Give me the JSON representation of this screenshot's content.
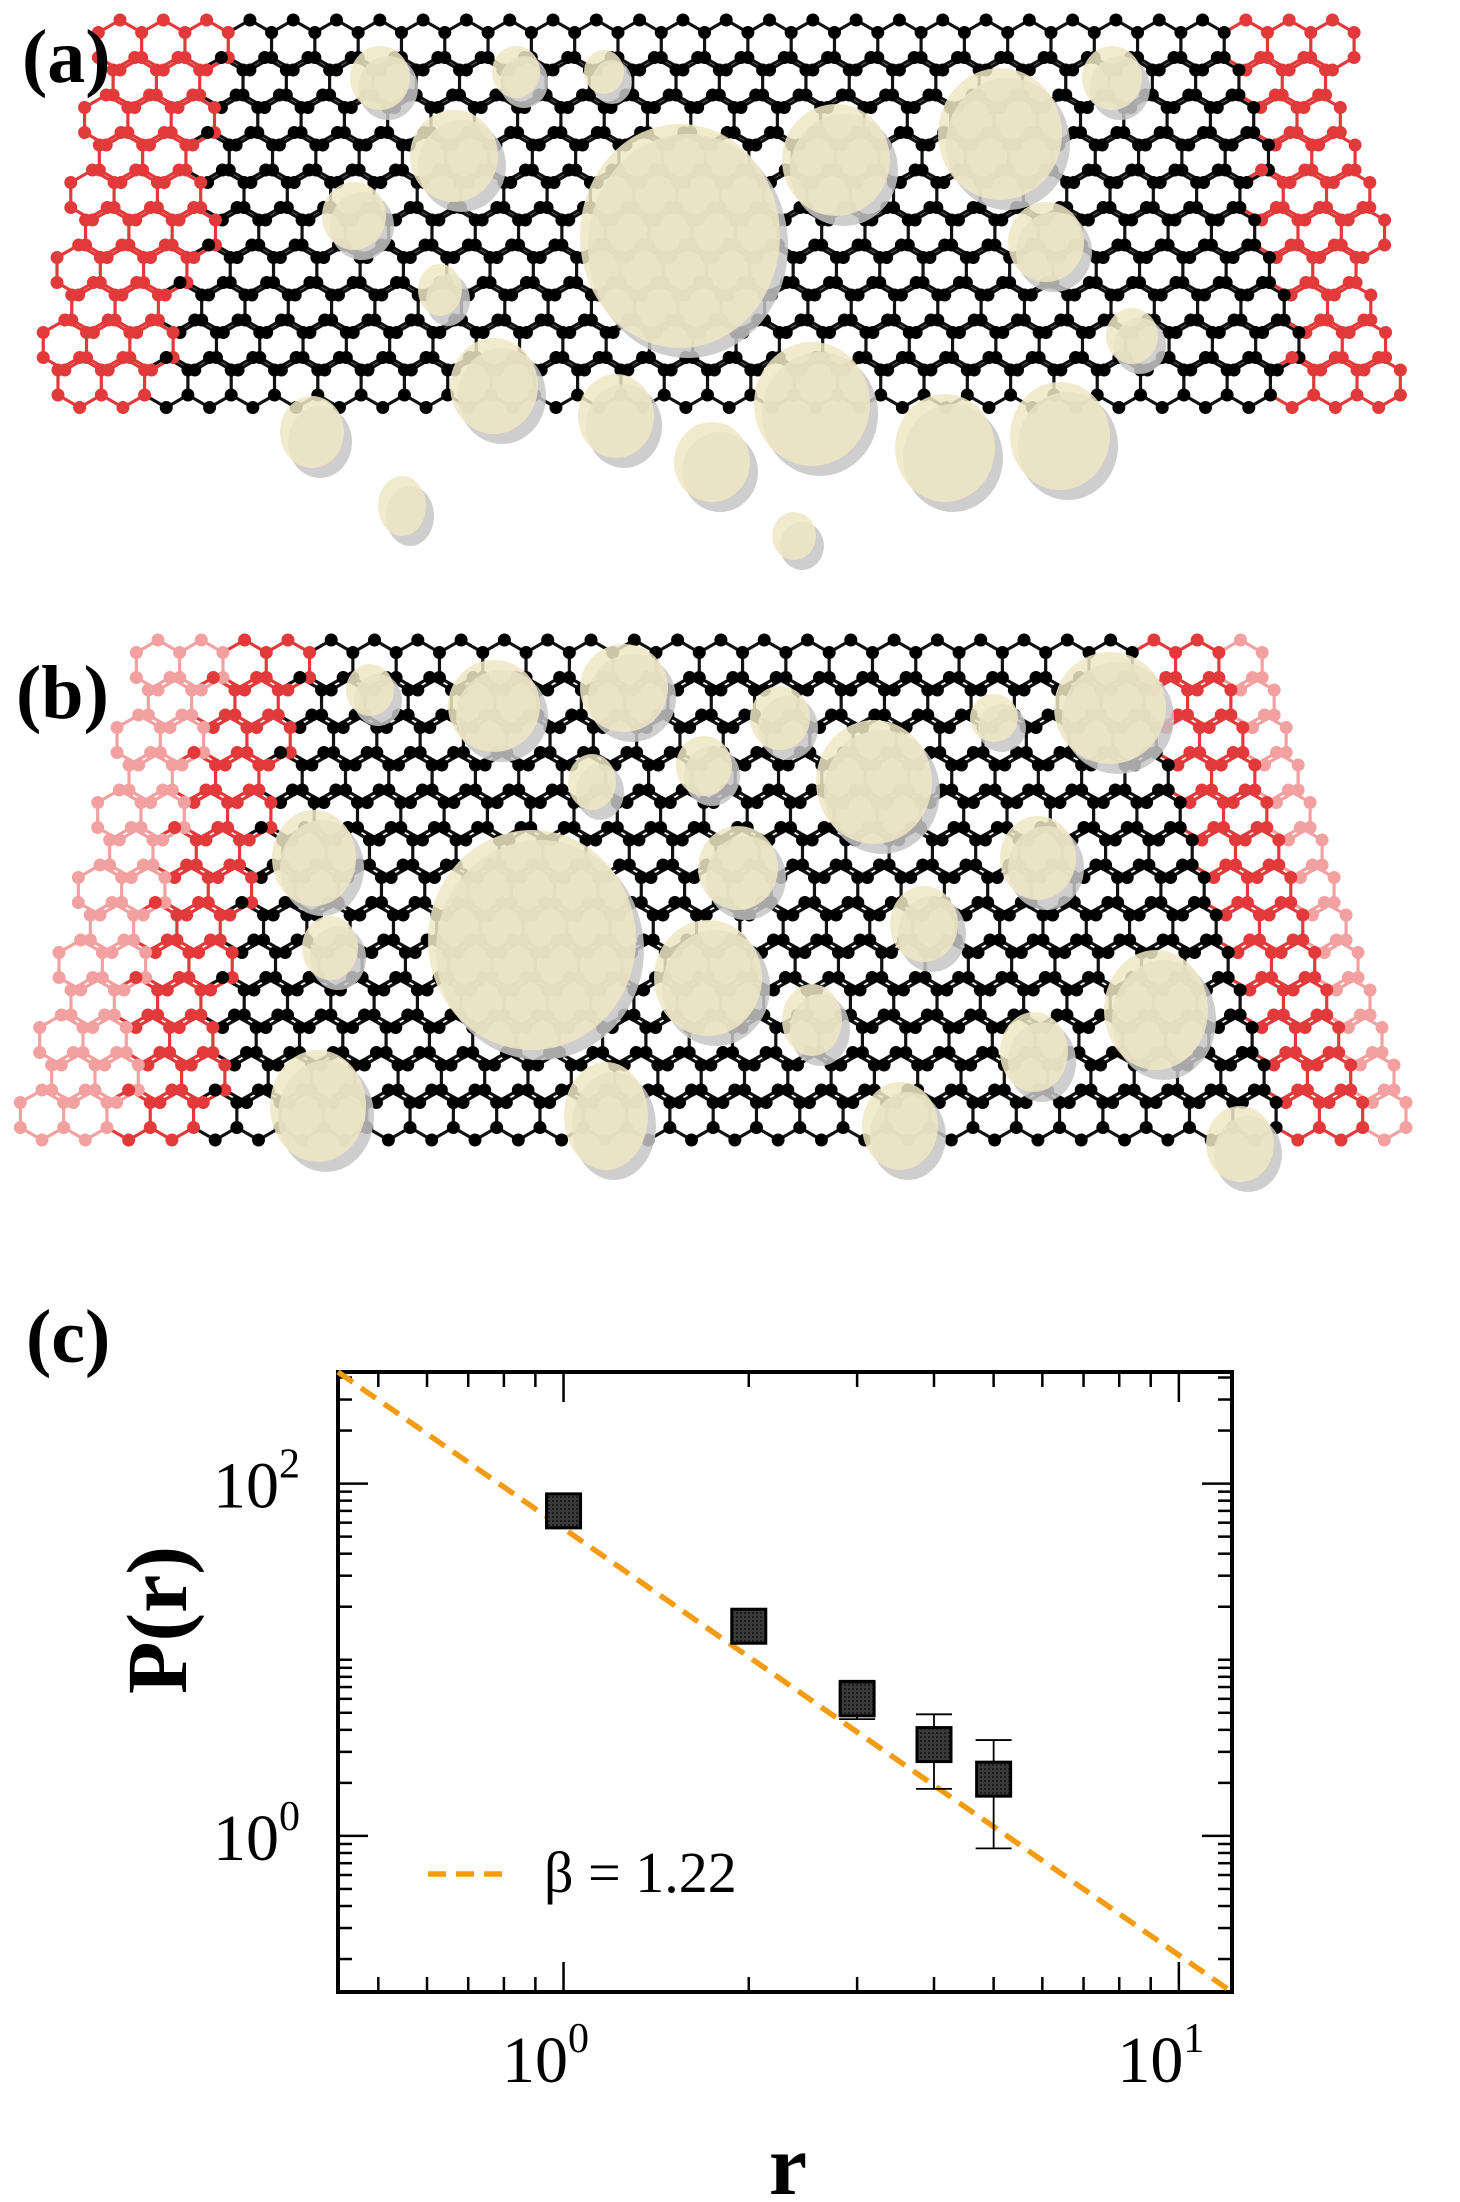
{
  "panels": {
    "a": "(a)",
    "b": "(b)",
    "c": "(c)"
  },
  "colors": {
    "lattice_bond": "#111111",
    "lattice_atom": "#000000",
    "lead": "#e23a3a",
    "lead_faded": "#f2a0a0",
    "cluster_fill": "#efe6c4",
    "cluster_shadow": "#c6c6c6",
    "fit_line": "#f39c12",
    "marker": "#333333"
  },
  "chart_data": {
    "type": "scatter",
    "xlabel": "r",
    "ylabel": "P(r)",
    "xscale": "log",
    "yscale": "log",
    "xlim": [
      0.43,
      12.2
    ],
    "ylim": [
      0.13,
      430
    ],
    "x_ticks": [
      {
        "value": 1,
        "base": "10",
        "exp": "0"
      },
      {
        "value": 10,
        "base": "10",
        "exp": "1"
      }
    ],
    "y_ticks": [
      {
        "value": 1,
        "base": "10",
        "exp": "0"
      },
      {
        "value": 100,
        "base": "10",
        "exp": "2"
      }
    ],
    "series": [
      {
        "marker": "square",
        "x": [
          1,
          2,
          3,
          4,
          5
        ],
        "y": [
          70,
          15.5,
          6.0,
          3.3,
          2.1
        ],
        "yerr_low": [
          67,
          14.5,
          4.6,
          1.85,
          0.85
        ],
        "yerr_high": [
          73,
          16.5,
          7.6,
          4.9,
          3.5
        ]
      }
    ],
    "fit": {
      "style": "dashed",
      "label": "β = 1.22",
      "x": [
        0.43,
        12.2
      ],
      "y": [
        430,
        0.13
      ]
    },
    "legend_position": "bottom-left"
  }
}
